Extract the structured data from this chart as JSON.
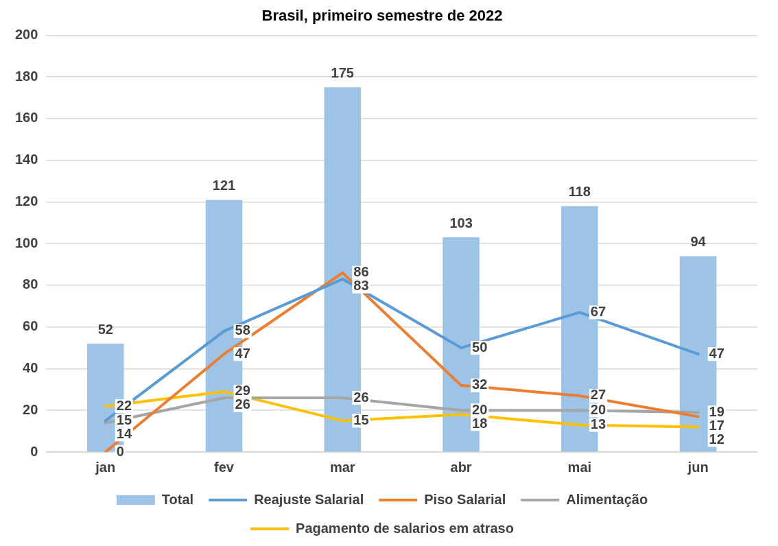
{
  "chart_data": {
    "type": "bar",
    "title": "Brasil, primeiro semestre de 2022",
    "categories": [
      "jan",
      "fev",
      "mar",
      "abr",
      "mai",
      "jun"
    ],
    "series": [
      {
        "name": "Total",
        "color": "#9dc3e6",
        "values": [
          52,
          121,
          175,
          103,
          118,
          94
        ]
      },
      {
        "name": "Reajuste Salarial",
        "type": "line",
        "color": "#5b9bd5",
        "values": [
          15,
          58,
          83,
          50,
          67,
          47
        ]
      },
      {
        "name": "Piso Salarial",
        "type": "line",
        "color": "#ed7d31",
        "values": [
          0,
          47,
          86,
          32,
          27,
          17
        ]
      },
      {
        "name": "Alimentação",
        "type": "line",
        "color": "#a5a5a5",
        "values": [
          14,
          26,
          26,
          20,
          20,
          19
        ]
      },
      {
        "name": "Pagamento de salarios em atraso",
        "type": "line",
        "color": "#ffc000",
        "values": [
          22,
          29,
          15,
          18,
          13,
          12
        ]
      }
    ],
    "ylim": [
      0,
      200
    ],
    "yticks": [
      0,
      20,
      40,
      60,
      80,
      100,
      120,
      140,
      160,
      180,
      200
    ],
    "grid": "y",
    "legend": "bottom",
    "data_labels": true,
    "marker": "none"
  }
}
